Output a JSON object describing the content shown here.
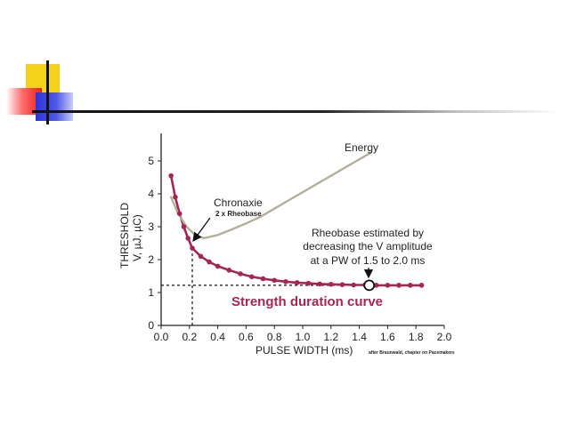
{
  "chart_data": {
    "type": "line",
    "xlabel": "PULSE WIDTH (ms)",
    "ylabel_line1": "THRESHOLD",
    "ylabel_line2": "V, µJ, µC)",
    "xlim": [
      0,
      2.0
    ],
    "ylim": [
      0,
      5.5
    ],
    "x_ticks": [
      "0.0",
      "0.2",
      "0.4",
      "0.6",
      "0.8",
      "1.0",
      "1.2",
      "1.4",
      "1.6",
      "1.8",
      "2.0"
    ],
    "y_ticks": [
      "0",
      "1",
      "2",
      "3",
      "4",
      "5"
    ],
    "grid": false,
    "series": [
      {
        "name": "Strength duration curve",
        "color": "#a6264f",
        "markers": true,
        "x": [
          0.07,
          0.1,
          0.13,
          0.16,
          0.19,
          0.22,
          0.28,
          0.34,
          0.4,
          0.48,
          0.56,
          0.64,
          0.72,
          0.8,
          0.88,
          0.96,
          1.04,
          1.12,
          1.2,
          1.28,
          1.36,
          1.44,
          1.52,
          1.6,
          1.68,
          1.76,
          1.84
        ],
        "y": [
          4.55,
          3.9,
          3.4,
          3.0,
          2.65,
          2.35,
          2.1,
          1.93,
          1.8,
          1.68,
          1.57,
          1.48,
          1.42,
          1.37,
          1.33,
          1.3,
          1.28,
          1.26,
          1.25,
          1.24,
          1.23,
          1.23,
          1.22,
          1.22,
          1.22,
          1.22,
          1.22
        ]
      },
      {
        "name": "Energy",
        "color": "#b2b09c",
        "markers": false,
        "x": [
          0.07,
          0.12,
          0.18,
          0.24,
          0.3,
          0.4,
          0.5,
          0.6,
          0.7,
          0.8,
          0.9,
          1.0,
          1.1,
          1.2,
          1.3,
          1.4,
          1.48
        ],
        "y": [
          3.9,
          3.4,
          3.0,
          2.75,
          2.65,
          2.75,
          2.92,
          3.1,
          3.3,
          3.55,
          3.8,
          4.05,
          4.3,
          4.55,
          4.8,
          5.05,
          5.25
        ]
      }
    ],
    "rheobase_y": 1.22,
    "chronaxie_x": 0.22,
    "rheobase_marker_x": 1.47,
    "annotations": {
      "energy": "Energy",
      "chronaxie": "Chronaxie",
      "chronaxie_sub": "2 x Rheobase",
      "rheobase_line1": "Rheobase estimated by",
      "rheobase_line2": "decreasing the V amplitude",
      "rheobase_line3": "at a PW of 1.5 to 2.0 ms",
      "curve_label": "Strength duration curve",
      "credit": "after Braunwald, chapter on Pacemakers"
    }
  }
}
